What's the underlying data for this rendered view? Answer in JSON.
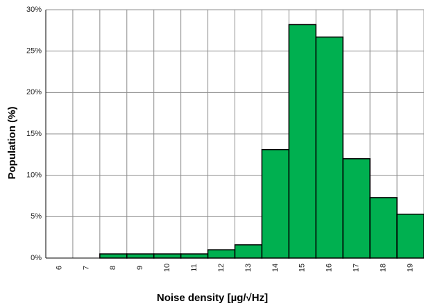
{
  "chart_data": {
    "type": "bar",
    "x_label": "Noise density [µg/√Hz]",
    "y_label": "Population (%)",
    "categories": [
      "6",
      "7",
      "8",
      "9",
      "10",
      "11",
      "12",
      "13",
      "14",
      "15",
      "16",
      "17",
      "18",
      "19"
    ],
    "values": [
      0,
      0,
      0.5,
      0.5,
      0.5,
      0.5,
      1.0,
      1.6,
      13.1,
      28.2,
      26.7,
      12.0,
      7.3,
      5.3
    ],
    "color": "#00b050",
    "ylim": [
      0,
      30
    ],
    "yticks": [
      {
        "value": 0,
        "label": "0%"
      },
      {
        "value": 5,
        "label": "5%"
      },
      {
        "value": 10,
        "label": "10%"
      },
      {
        "value": 15,
        "label": "15%"
      },
      {
        "value": 20,
        "label": "20%"
      },
      {
        "value": 25,
        "label": "25%"
      },
      {
        "value": 30,
        "label": "30%"
      }
    ],
    "grid": true
  }
}
